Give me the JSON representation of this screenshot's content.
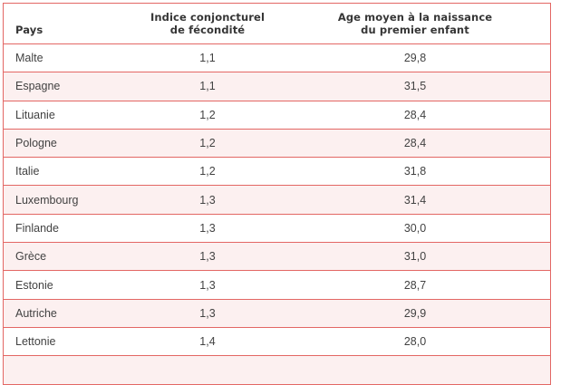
{
  "colors": {
    "border": "#e36764",
    "stripe": "#fcf0f0",
    "row_bg": "#ffffff",
    "text": "#424242",
    "header_text": "#363636",
    "page_bg": "#ffffff"
  },
  "table": {
    "columns": [
      {
        "label": "Pays"
      },
      {
        "label_line1": "Indice conjoncturel",
        "label_line2": "de fécondité"
      },
      {
        "label_line1": "Age moyen à la naissance",
        "label_line2": "du premier enfant"
      }
    ],
    "rows": [
      {
        "pays": "Malte",
        "indice": "1,1",
        "age": "29,8"
      },
      {
        "pays": "Espagne",
        "indice": "1,1",
        "age": "31,5"
      },
      {
        "pays": "Lituanie",
        "indice": "1,2",
        "age": "28,4"
      },
      {
        "pays": "Pologne",
        "indice": "1,2",
        "age": "28,4"
      },
      {
        "pays": "Italie",
        "indice": "1,2",
        "age": "31,8"
      },
      {
        "pays": "Luxembourg",
        "indice": "1,3",
        "age": "31,4"
      },
      {
        "pays": "Finlande",
        "indice": "1,3",
        "age": "30,0"
      },
      {
        "pays": "Grèce",
        "indice": "1,3",
        "age": "31,0"
      },
      {
        "pays": "Estonie",
        "indice": "1,3",
        "age": "28,7"
      },
      {
        "pays": "Autriche",
        "indice": "1,3",
        "age": "29,9"
      },
      {
        "pays": "Lettonie",
        "indice": "1,4",
        "age": "28,0"
      }
    ]
  },
  "chart_data": {
    "type": "table",
    "columns": [
      "Pays",
      "Indice conjoncturel de fécondité",
      "Age moyen à la naissance du premier enfant"
    ],
    "rows": [
      [
        "Malte",
        1.1,
        29.8
      ],
      [
        "Espagne",
        1.1,
        31.5
      ],
      [
        "Lituanie",
        1.2,
        28.4
      ],
      [
        "Pologne",
        1.2,
        28.4
      ],
      [
        "Italie",
        1.2,
        31.8
      ],
      [
        "Luxembourg",
        1.3,
        31.4
      ],
      [
        "Finlande",
        1.3,
        30.0
      ],
      [
        "Grèce",
        1.3,
        31.0
      ],
      [
        "Estonie",
        1.3,
        28.7
      ],
      [
        "Autriche",
        1.3,
        29.9
      ],
      [
        "Lettonie",
        1.4,
        28.0
      ]
    ],
    "notes": "Decimal comma (French locale); 12th striped row visible but cut off at bottom edge"
  }
}
